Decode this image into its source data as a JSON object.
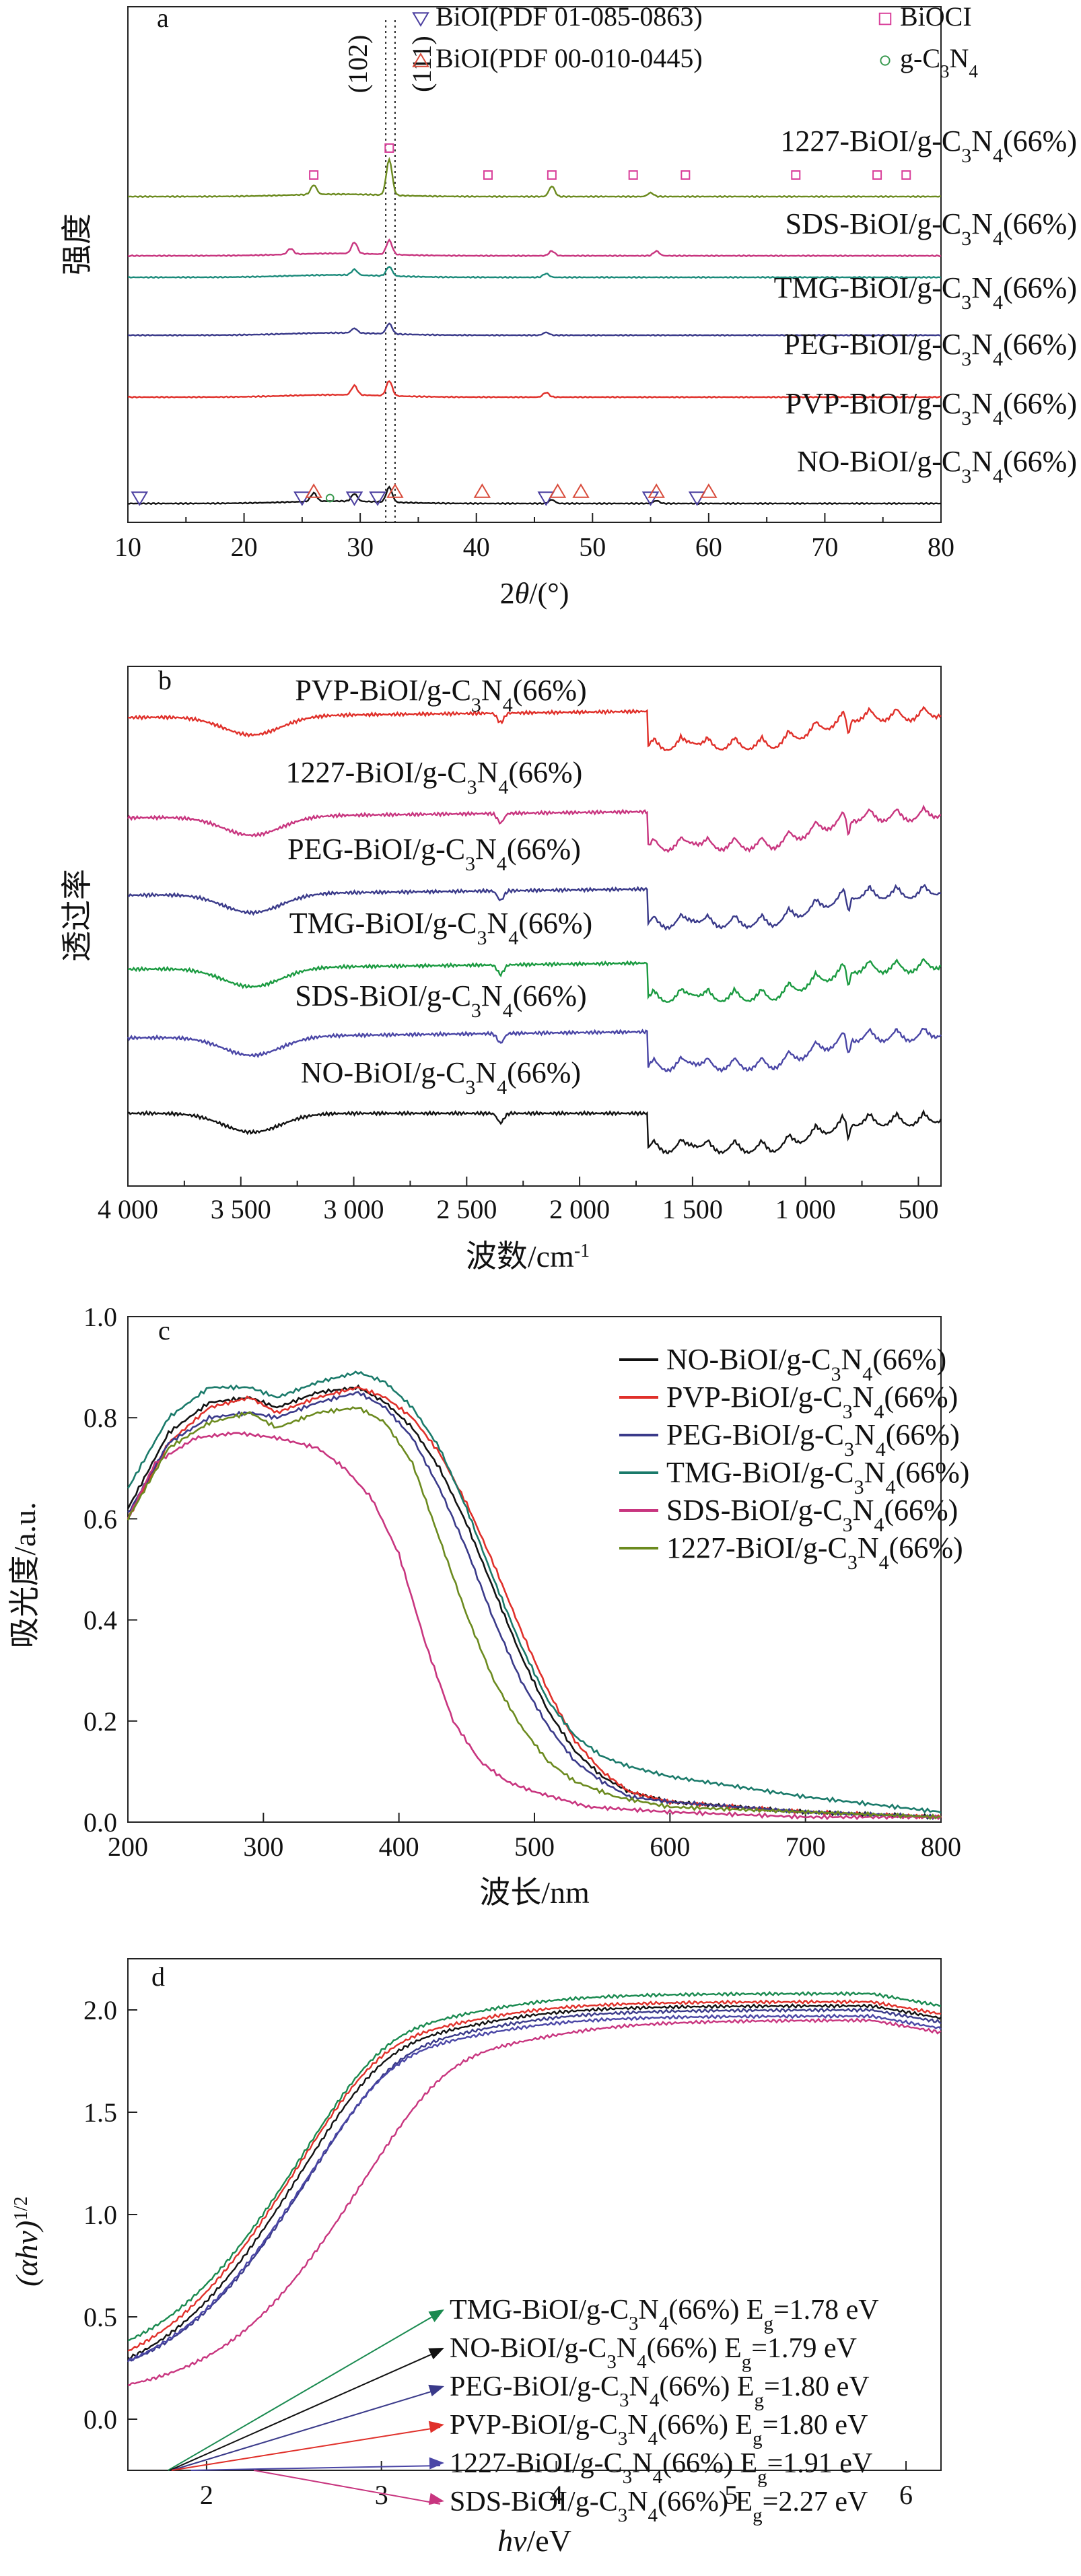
{
  "chart_data": [
    {
      "id": "a",
      "type": "line",
      "panel_label": "a",
      "xlabel": "2θ/(°)",
      "ylabel": "强度",
      "xlim": [
        10,
        80
      ],
      "xticks": [
        "10",
        "20",
        "30",
        "40",
        "50",
        "60",
        "70",
        "80"
      ],
      "y_ticks_shown": false,
      "reference_lines": [
        {
          "label": "(102)",
          "x": 32.2
        },
        {
          "label": "(111)",
          "x": 33.0
        }
      ],
      "legend": [
        {
          "marker": "down-triangle",
          "color": "#4b3fa0",
          "label": "BiOI(PDF 01-085-0863)"
        },
        {
          "marker": "square",
          "color": "#d9409a",
          "label": "BiOCI"
        },
        {
          "marker": "up-triangle",
          "color": "#d84a3a",
          "label": "BiOI(PDF 00-010-0445)"
        },
        {
          "marker": "circle",
          "color": "#3a9a50",
          "label": "g-C3N4"
        }
      ],
      "series": [
        {
          "name": "1227-BiOI/g-C3N4(66%)",
          "color": "#6b8a1e",
          "peaks": [
            {
              "x": 26,
              "h": 1.0
            },
            {
              "x": 32.5,
              "h": 3.8
            },
            {
              "x": 46.5,
              "h": 1.1
            },
            {
              "x": 55,
              "h": 0.4
            }
          ]
        },
        {
          "name": "SDS-BiOI/g-C3N4(66%)",
          "color": "#c8357f",
          "peaks": [
            {
              "x": 24,
              "h": 0.6
            },
            {
              "x": 29.5,
              "h": 1.2
            },
            {
              "x": 32.5,
              "h": 1.5
            },
            {
              "x": 46.5,
              "h": 0.5
            },
            {
              "x": 55.5,
              "h": 0.5
            }
          ]
        },
        {
          "name": "TMG-BiOI/g-C3N4(66%)",
          "color": "#1a8a7a",
          "peaks": [
            {
              "x": 29.5,
              "h": 0.6
            },
            {
              "x": 32.5,
              "h": 1.0
            },
            {
              "x": 46,
              "h": 0.4
            }
          ]
        },
        {
          "name": "PEG-BiOI/g-C3N4(66%)",
          "color": "#3a3a8a",
          "peaks": [
            {
              "x": 29.5,
              "h": 0.5
            },
            {
              "x": 32.5,
              "h": 1.1
            },
            {
              "x": 46,
              "h": 0.3
            }
          ]
        },
        {
          "name": "PVP-BiOI/g-C3N4(66%)",
          "color": "#e0302a",
          "peaks": [
            {
              "x": 29.5,
              "h": 1.0
            },
            {
              "x": 32.5,
              "h": 1.6
            },
            {
              "x": 46,
              "h": 0.5
            }
          ]
        },
        {
          "name": "NO-BiOI/g-C3N4(66%)",
          "color": "#111111",
          "peaks": [
            {
              "x": 26,
              "h": 0.9
            },
            {
              "x": 29.5,
              "h": 0.8
            },
            {
              "x": 32.5,
              "h": 1.6
            },
            {
              "x": 46.5,
              "h": 0.4
            },
            {
              "x": 55.5,
              "h": 0.3
            }
          ]
        }
      ]
    },
    {
      "id": "b",
      "type": "line",
      "panel_label": "b",
      "xlabel": "波数/cm-1",
      "ylabel": "透过率",
      "xlim": [
        4000,
        400
      ],
      "xticks": [
        "4 000",
        "3 500",
        "3 000",
        "2 500",
        "2 000",
        "1 500",
        "1 000",
        "500"
      ],
      "y_ticks_shown": false,
      "series": [
        {
          "name": "PVP-BiOI/g-C3N4(66%)",
          "color": "#e0302a"
        },
        {
          "name": "1227-BiOI/g-C3N4(66%)",
          "color": "#c8357f"
        },
        {
          "name": "PEG-BiOI/g-C3N4(66%)",
          "color": "#3a3a8a"
        },
        {
          "name": "TMG-BiOI/g-C3N4(66%)",
          "color": "#1a9a40"
        },
        {
          "name": "SDS-BiOI/g-C3N4(66%)",
          "color": "#4a46a6"
        },
        {
          "name": "NO-BiOI/g-C3N4(66%)",
          "color": "#111111"
        }
      ]
    },
    {
      "id": "c",
      "type": "line",
      "panel_label": "c",
      "xlabel": "波长/nm",
      "ylabel": "吸光度/a.u.",
      "xlim": [
        200,
        800
      ],
      "ylim": [
        0.0,
        1.0
      ],
      "xticks": [
        "200",
        "300",
        "400",
        "500",
        "600",
        "700",
        "800"
      ],
      "yticks": [
        "0.0",
        "0.2",
        "0.4",
        "0.6",
        "0.8",
        "1.0"
      ],
      "legend_position": "top-right",
      "series": [
        {
          "name": "NO-BiOI/g-C3N4(66%)",
          "color": "#111111",
          "x": [
            200,
            230,
            260,
            290,
            310,
            340,
            370,
            390,
            410,
            430,
            450,
            470,
            490,
            510,
            530,
            550,
            570,
            600,
            650,
            700,
            800
          ],
          "y": [
            0.62,
            0.77,
            0.83,
            0.84,
            0.82,
            0.85,
            0.86,
            0.83,
            0.78,
            0.7,
            0.59,
            0.46,
            0.33,
            0.22,
            0.14,
            0.09,
            0.06,
            0.04,
            0.03,
            0.02,
            0.01
          ]
        },
        {
          "name": "PVP-BiOI/g-C3N4(66%)",
          "color": "#e0302a",
          "x": [
            200,
            230,
            260,
            290,
            310,
            340,
            370,
            390,
            410,
            430,
            450,
            470,
            490,
            510,
            530,
            550,
            570,
            600,
            650,
            700,
            800
          ],
          "y": [
            0.6,
            0.75,
            0.82,
            0.84,
            0.81,
            0.84,
            0.86,
            0.84,
            0.8,
            0.73,
            0.63,
            0.51,
            0.38,
            0.26,
            0.16,
            0.1,
            0.06,
            0.04,
            0.03,
            0.02,
            0.01
          ]
        },
        {
          "name": "PEG-BiOI/g-C3N4(66%)",
          "color": "#3a3a8a",
          "x": [
            200,
            230,
            260,
            290,
            310,
            340,
            370,
            390,
            410,
            430,
            450,
            470,
            490,
            510,
            530,
            550,
            570,
            600,
            650,
            700,
            800
          ],
          "y": [
            0.61,
            0.75,
            0.8,
            0.81,
            0.8,
            0.83,
            0.85,
            0.82,
            0.76,
            0.66,
            0.54,
            0.4,
            0.28,
            0.19,
            0.12,
            0.08,
            0.05,
            0.04,
            0.03,
            0.02,
            0.01
          ]
        },
        {
          "name": "TMG-BiOI/g-C3N4(66%)",
          "color": "#1a7a6a",
          "x": [
            200,
            230,
            260,
            290,
            310,
            340,
            370,
            390,
            410,
            430,
            450,
            470,
            490,
            510,
            530,
            550,
            570,
            600,
            650,
            700,
            800
          ],
          "y": [
            0.66,
            0.8,
            0.86,
            0.86,
            0.84,
            0.87,
            0.89,
            0.87,
            0.82,
            0.74,
            0.62,
            0.48,
            0.35,
            0.24,
            0.17,
            0.13,
            0.11,
            0.09,
            0.07,
            0.05,
            0.02
          ]
        },
        {
          "name": "SDS-BiOI/g-C3N4(66%)",
          "color": "#c8357f",
          "x": [
            200,
            220,
            250,
            280,
            310,
            340,
            360,
            380,
            400,
            420,
            440,
            460,
            480,
            500,
            540,
            600,
            700,
            800
          ],
          "y": [
            0.6,
            0.71,
            0.76,
            0.77,
            0.76,
            0.74,
            0.7,
            0.64,
            0.53,
            0.35,
            0.2,
            0.12,
            0.08,
            0.06,
            0.03,
            0.02,
            0.01,
            0.01
          ]
        },
        {
          "name": "1227-BiOI/g-C3N4(66%)",
          "color": "#6b8a1e",
          "x": [
            200,
            230,
            260,
            290,
            310,
            340,
            370,
            390,
            410,
            430,
            450,
            470,
            490,
            510,
            530,
            560,
            600,
            700,
            800
          ],
          "y": [
            0.6,
            0.74,
            0.79,
            0.81,
            0.78,
            0.81,
            0.82,
            0.79,
            0.71,
            0.56,
            0.41,
            0.28,
            0.19,
            0.12,
            0.08,
            0.05,
            0.03,
            0.02,
            0.01
          ]
        }
      ]
    },
    {
      "id": "d",
      "type": "line",
      "panel_label": "d",
      "xlabel": "hν/eV",
      "ylabel": "(αhν)1/2",
      "xlim": [
        1.55,
        6.2
      ],
      "ylim": [
        -0.25,
        2.25
      ],
      "xticks": [
        "2",
        "3",
        "4",
        "5",
        "6"
      ],
      "yticks": [
        "0.0",
        "0.5",
        "1.0",
        "1.5",
        "2.0"
      ],
      "series": [
        {
          "name": "TMG-BiOI/g-C3N4(66%)",
          "eg": "1.78 eV",
          "color": "#1a8a50"
        },
        {
          "name": "NO-BiOI/g-C3N4(66%)",
          "eg": "1.79 eV",
          "color": "#111111"
        },
        {
          "name": "PEG-BiOI/g-C3N4(66%)",
          "eg": "1.80 eV",
          "color": "#3a3a8a"
        },
        {
          "name": "PVP-BiOI/g-C3N4(66%)",
          "eg": "1.80 eV",
          "color": "#e0302a"
        },
        {
          "name": "1227-BiOI/g-C3N4(66%)",
          "eg": "1.91 eV",
          "color": "#4a46a6"
        },
        {
          "name": "SDS-BiOI/g-C3N4(66%)",
          "eg": "2.27 eV",
          "color": "#c8357f"
        }
      ]
    }
  ]
}
